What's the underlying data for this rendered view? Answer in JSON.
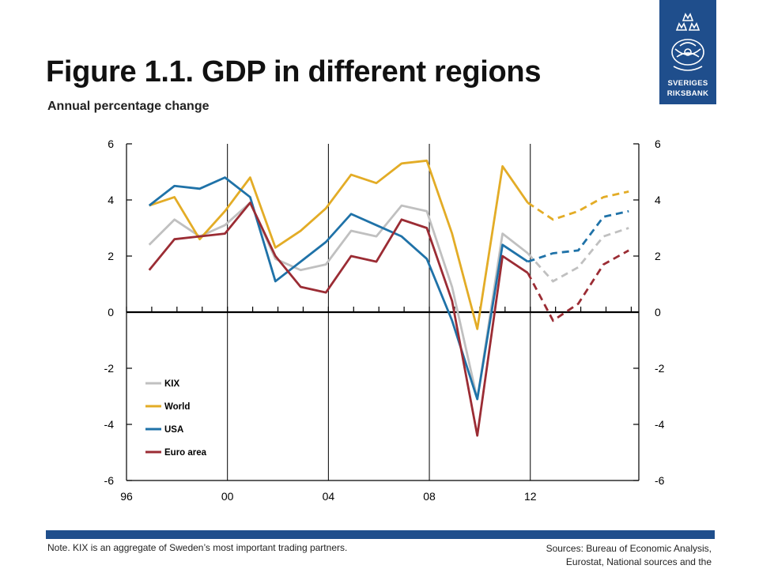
{
  "header": {
    "title": "Figure 1.1. GDP in different regions",
    "subtitle": "Annual percentage change"
  },
  "logo": {
    "line1": "SVERIGES",
    "line2": "RIKSBANK",
    "color": "#1f4e8c"
  },
  "footer": {
    "note": "Note. KIX is an aggregate of Sweden’s most important trading partners.",
    "sources_line1": "Sources: Bureau of Economic Analysis,",
    "sources_line2": "Eurostat, National sources and the"
  },
  "chart_data": {
    "type": "line",
    "x": [
      1996,
      1997,
      1998,
      1999,
      2000,
      2001,
      2002,
      2003,
      2004,
      2005,
      2006,
      2007,
      2008,
      2009,
      2010,
      2011,
      2012,
      2013,
      2014,
      2015
    ],
    "x_tick_labels": [
      "96",
      "00",
      "04",
      "08",
      "12"
    ],
    "x_tick_values": [
      1995.6,
      1999.6,
      2003.6,
      2007.6,
      2011.6
    ],
    "x_range": [
      1995.6,
      2015.9
    ],
    "y_range": [
      -6,
      6
    ],
    "y_ticks": [
      -6,
      -4,
      -2,
      0,
      2,
      4,
      6
    ],
    "y_tick_labels": [
      "-6",
      "-4",
      "-2",
      "0",
      "2",
      "4",
      "6"
    ],
    "forecast_start_index": 16,
    "grid": false,
    "legend_position": "bottom-left",
    "series": [
      {
        "name": "KIX",
        "color": "#c0c0c0",
        "values": [
          2.4,
          3.3,
          2.7,
          3.1,
          3.9,
          1.9,
          1.5,
          1.7,
          2.9,
          2.7,
          3.8,
          3.6,
          0.9,
          -3.1,
          2.8,
          2.1,
          1.1,
          1.6,
          2.7,
          3.0
        ]
      },
      {
        "name": "World",
        "color": "#e3ac26",
        "values": [
          3.8,
          4.1,
          2.6,
          3.6,
          4.8,
          2.3,
          2.9,
          3.7,
          4.9,
          4.6,
          5.3,
          5.4,
          2.8,
          -0.6,
          5.2,
          3.9,
          3.3,
          3.6,
          4.1,
          4.3
        ]
      },
      {
        "name": "USA",
        "color": "#1f72a8",
        "values": [
          3.8,
          4.5,
          4.4,
          4.8,
          4.1,
          1.1,
          1.8,
          2.5,
          3.5,
          3.1,
          2.7,
          1.9,
          -0.3,
          -3.1,
          2.4,
          1.8,
          2.1,
          2.2,
          3.4,
          3.6
        ]
      },
      {
        "name": "Euro area",
        "color": "#9b2c34",
        "values": [
          1.5,
          2.6,
          2.7,
          2.8,
          3.9,
          2.0,
          0.9,
          0.7,
          2.0,
          1.8,
          3.3,
          3.0,
          0.4,
          -4.4,
          2.0,
          1.4,
          -0.3,
          0.3,
          1.7,
          2.2
        ]
      }
    ]
  }
}
